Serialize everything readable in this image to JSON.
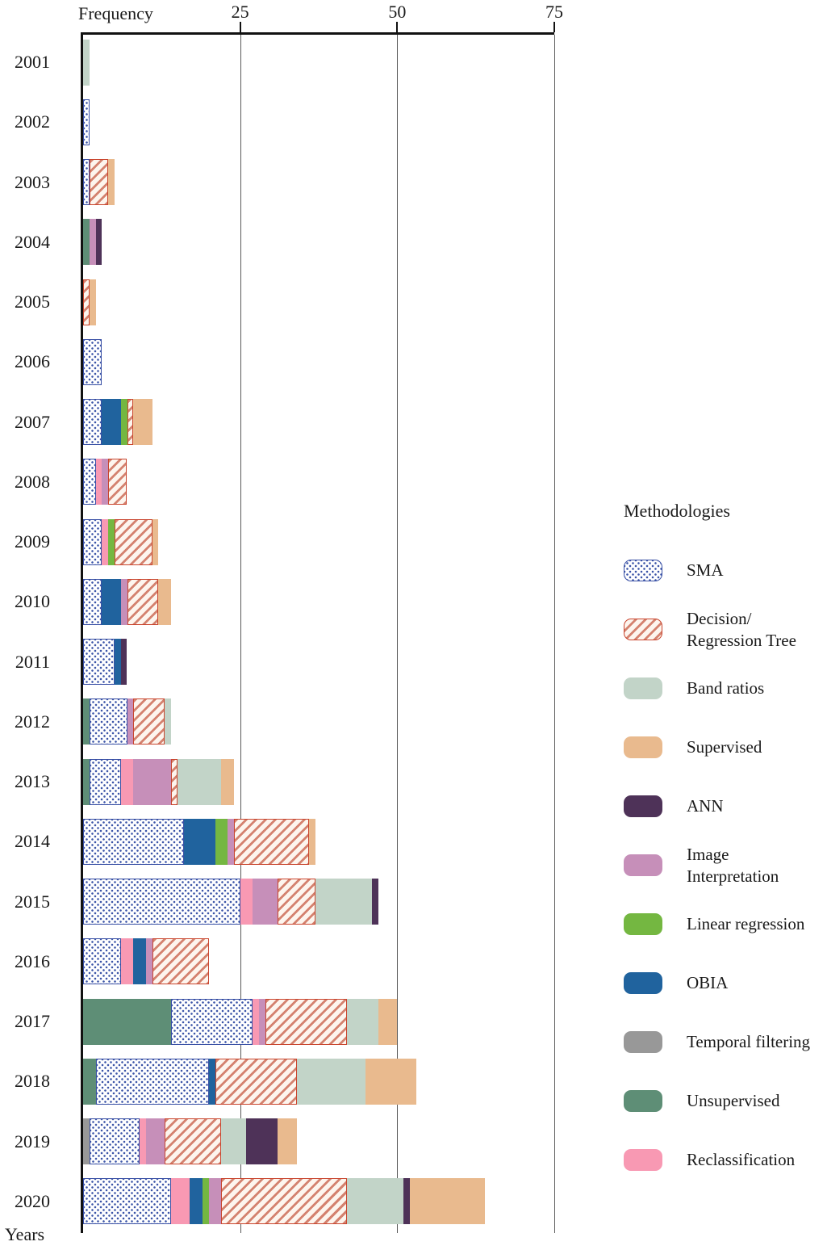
{
  "axes": {
    "x_axis_label": "Frequency",
    "y_axis_label": "Years"
  },
  "legend": {
    "title": "Methodologies",
    "items": [
      {
        "id": "sma",
        "label": "SMA",
        "lines": [
          "SMA"
        ],
        "pattern": "sma",
        "pattern_color": "#3c55a8",
        "border_color": "#3950a5",
        "fill": "#ffffff"
      },
      {
        "id": "dt",
        "label": "Decision/Regression Tree",
        "lines": [
          "Decision/",
          "Regression Tree"
        ],
        "pattern": "dt",
        "pattern_color": "#d4826f",
        "border_color": "#c9452e",
        "fill": "#fdf5ee"
      },
      {
        "id": "band",
        "label": "Band ratios",
        "lines": [
          "Band ratios"
        ],
        "fill": "#c2d4c8"
      },
      {
        "id": "sup",
        "label": "Supervised",
        "lines": [
          "Supervised"
        ],
        "fill": "#e9ba8e"
      },
      {
        "id": "ann",
        "label": "ANN",
        "lines": [
          "ANN"
        ],
        "fill": "#4e3258"
      },
      {
        "id": "img",
        "label": "Image Interpretation",
        "lines": [
          "Image",
          "Interpretation"
        ],
        "fill": "#c68fb9"
      },
      {
        "id": "lin",
        "label": "Linear regression",
        "lines": [
          "Linear regression"
        ],
        "fill": "#74b741"
      },
      {
        "id": "obia",
        "label": "OBIA",
        "lines": [
          "OBIA"
        ],
        "fill": "#20639e"
      },
      {
        "id": "temp",
        "label": "Temporal filtering",
        "lines": [
          "Temporal filtering"
        ],
        "fill": "#989898"
      },
      {
        "id": "unsup",
        "label": "Unsupervised",
        "lines": [
          "Unsupervised"
        ],
        "fill": "#5e8e76"
      },
      {
        "id": "rec",
        "label": "Reclassification",
        "lines": [
          "Reclassification"
        ],
        "fill": "#f899b3"
      }
    ]
  },
  "chart_data": {
    "type": "bar",
    "orientation": "horizontal",
    "stacked": true,
    "title": "",
    "xlabel": "Frequency",
    "ylabel": "Years",
    "xlim": [
      0,
      75
    ],
    "xticks": [
      25,
      50,
      75
    ],
    "grid": true,
    "legend_position": "right",
    "categories": [
      "2001",
      "2002",
      "2003",
      "2004",
      "2005",
      "2006",
      "2007",
      "2008",
      "2009",
      "2010",
      "2011",
      "2012",
      "2013",
      "2014",
      "2015",
      "2016",
      "2017",
      "2018",
      "2019",
      "2020"
    ],
    "bars": {
      "2001": [
        {
          "m": "band",
          "v": 1
        }
      ],
      "2002": [
        {
          "m": "sma",
          "v": 1
        }
      ],
      "2003": [
        {
          "m": "sma",
          "v": 1
        },
        {
          "m": "dt",
          "v": 3
        },
        {
          "m": "sup",
          "v": 1
        }
      ],
      "2004": [
        {
          "m": "unsup",
          "v": 1
        },
        {
          "m": "img",
          "v": 1
        },
        {
          "m": "ann",
          "v": 1
        }
      ],
      "2005": [
        {
          "m": "dt",
          "v": 1
        },
        {
          "m": "sup",
          "v": 1
        }
      ],
      "2006": [
        {
          "m": "sma",
          "v": 3
        }
      ],
      "2007": [
        {
          "m": "sma",
          "v": 3
        },
        {
          "m": "obia",
          "v": 3
        },
        {
          "m": "lin",
          "v": 1
        },
        {
          "m": "dt",
          "v": 1
        },
        {
          "m": "sup",
          "v": 3
        }
      ],
      "2008": [
        {
          "m": "sma",
          "v": 2
        },
        {
          "m": "rec",
          "v": 1
        },
        {
          "m": "img",
          "v": 1
        },
        {
          "m": "dt",
          "v": 3
        }
      ],
      "2009": [
        {
          "m": "sma",
          "v": 3
        },
        {
          "m": "rec",
          "v": 1
        },
        {
          "m": "lin",
          "v": 1
        },
        {
          "m": "dt",
          "v": 6
        },
        {
          "m": "sup",
          "v": 1
        }
      ],
      "2010": [
        {
          "m": "sma",
          "v": 3
        },
        {
          "m": "obia",
          "v": 3
        },
        {
          "m": "img",
          "v": 1
        },
        {
          "m": "dt",
          "v": 5
        },
        {
          "m": "sup",
          "v": 2
        }
      ],
      "2011": [
        {
          "m": "sma",
          "v": 5
        },
        {
          "m": "obia",
          "v": 1
        },
        {
          "m": "ann",
          "v": 1
        }
      ],
      "2012": [
        {
          "m": "unsup",
          "v": 1
        },
        {
          "m": "sma",
          "v": 6
        },
        {
          "m": "img",
          "v": 1
        },
        {
          "m": "dt",
          "v": 5
        },
        {
          "m": "band",
          "v": 1
        }
      ],
      "2013": [
        {
          "m": "unsup",
          "v": 1
        },
        {
          "m": "sma",
          "v": 5
        },
        {
          "m": "rec",
          "v": 2
        },
        {
          "m": "img",
          "v": 6
        },
        {
          "m": "dt",
          "v": 1
        },
        {
          "m": "band",
          "v": 7
        },
        {
          "m": "sup",
          "v": 2
        }
      ],
      "2014": [
        {
          "m": "sma",
          "v": 16
        },
        {
          "m": "obia",
          "v": 5
        },
        {
          "m": "lin",
          "v": 2
        },
        {
          "m": "img",
          "v": 1
        },
        {
          "m": "dt",
          "v": 12
        },
        {
          "m": "sup",
          "v": 1
        }
      ],
      "2015": [
        {
          "m": "sma",
          "v": 25
        },
        {
          "m": "rec",
          "v": 2
        },
        {
          "m": "img",
          "v": 4
        },
        {
          "m": "dt",
          "v": 6
        },
        {
          "m": "band",
          "v": 9
        },
        {
          "m": "ann",
          "v": 1
        }
      ],
      "2016": [
        {
          "m": "sma",
          "v": 6
        },
        {
          "m": "rec",
          "v": 2
        },
        {
          "m": "obia",
          "v": 2
        },
        {
          "m": "img",
          "v": 1
        },
        {
          "m": "dt",
          "v": 9
        }
      ],
      "2017": [
        {
          "m": "unsup",
          "v": 14
        },
        {
          "m": "sma",
          "v": 13
        },
        {
          "m": "rec",
          "v": 1
        },
        {
          "m": "img",
          "v": 1
        },
        {
          "m": "dt",
          "v": 13
        },
        {
          "m": "band",
          "v": 5
        },
        {
          "m": "sup",
          "v": 3
        }
      ],
      "2018": [
        {
          "m": "unsup",
          "v": 2
        },
        {
          "m": "sma",
          "v": 18
        },
        {
          "m": "obia",
          "v": 1
        },
        {
          "m": "dt",
          "v": 13
        },
        {
          "m": "band",
          "v": 11
        },
        {
          "m": "sup",
          "v": 8
        }
      ],
      "2019": [
        {
          "m": "temp",
          "v": 1
        },
        {
          "m": "sma",
          "v": 8
        },
        {
          "m": "rec",
          "v": 1
        },
        {
          "m": "img",
          "v": 3
        },
        {
          "m": "dt",
          "v": 9
        },
        {
          "m": "band",
          "v": 4
        },
        {
          "m": "ann",
          "v": 5
        },
        {
          "m": "sup",
          "v": 3
        }
      ],
      "2020": [
        {
          "m": "sma",
          "v": 14
        },
        {
          "m": "rec",
          "v": 3
        },
        {
          "m": "obia",
          "v": 2
        },
        {
          "m": "lin",
          "v": 1
        },
        {
          "m": "img",
          "v": 2
        },
        {
          "m": "dt",
          "v": 20
        },
        {
          "m": "band",
          "v": 9
        },
        {
          "m": "ann",
          "v": 1
        },
        {
          "m": "sup",
          "v": 12
        }
      ]
    }
  }
}
